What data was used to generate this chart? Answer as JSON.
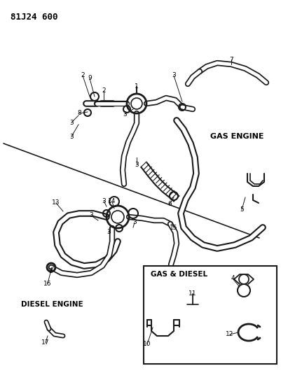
{
  "title": "81J24 600",
  "bg": "#ffffff",
  "lc": "#1a1a1a",
  "tc": "#000000",
  "figsize": [
    4.01,
    5.33
  ],
  "dpi": 100,
  "labels": {
    "gas_engine": "GAS ENGINE",
    "diesel_engine": "DIESEL ENGINE",
    "gas_diesel": "GAS & DIESEL"
  }
}
